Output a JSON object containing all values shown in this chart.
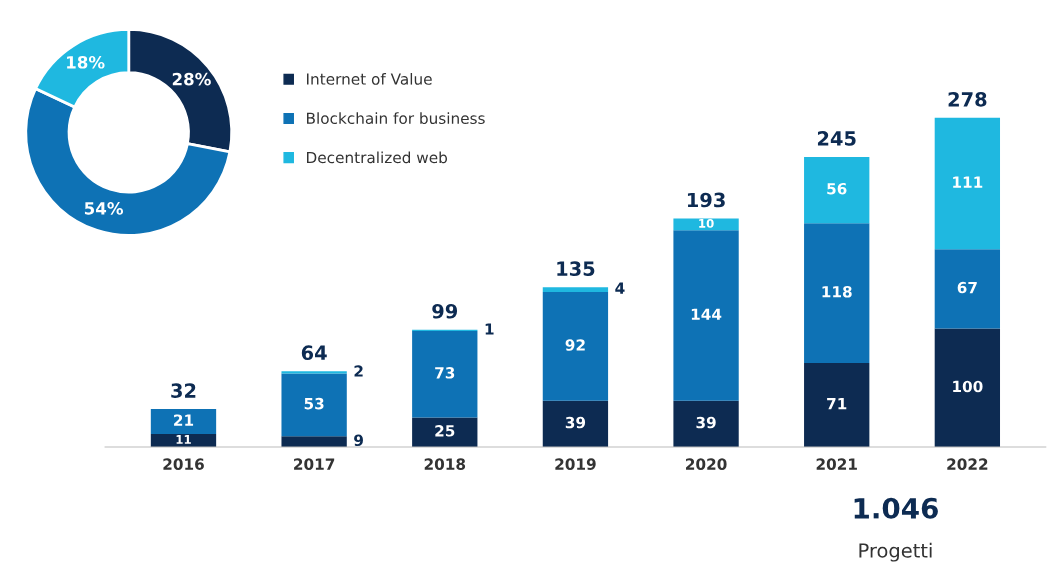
{
  "chart_data": [
    {
      "type": "donut",
      "categories": [
        "Internet of Value",
        "Blockchain for business",
        "Decentralized web"
      ],
      "values": [
        28,
        54,
        18
      ],
      "colors": [
        "#0d2b52",
        "#0e72b5",
        "#1fb8e0"
      ],
      "value_labels": [
        "28%",
        "54%",
        "18%"
      ],
      "legend": "right"
    },
    {
      "type": "bar",
      "stacked": true,
      "categories": [
        "2016",
        "2017",
        "2018",
        "2019",
        "2020",
        "2021",
        "2022"
      ],
      "series": [
        {
          "color": "#0d2b52",
          "values": [
            11,
            9,
            25,
            39,
            39,
            71,
            100
          ]
        },
        {
          "color": "#0e72b5",
          "values": [
            21,
            53,
            73,
            92,
            144,
            118,
            67
          ]
        },
        {
          "color": "#1fb8e0",
          "values": [
            null,
            2,
            1,
            4,
            10,
            56,
            111
          ]
        }
      ],
      "data_labels": true,
      "totals": [
        "32",
        "64",
        "99",
        "135",
        "193",
        "245",
        "278"
      ],
      "annotations": [
        "1.046",
        "Progetti"
      ]
    }
  ]
}
